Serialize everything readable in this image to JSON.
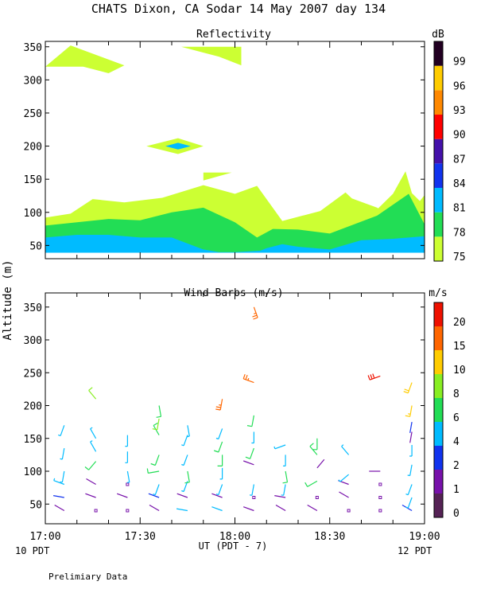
{
  "figure": {
    "title": "CHATS Dixon, CA  Sodar  14 May 2007  day 134",
    "ylabel": "Altitude (m)",
    "xlabel": "UT  (PDT - 7)",
    "left_note": "10 PDT",
    "right_note": "12 PDT",
    "footer": "Prelimiary Data",
    "xticks": [
      "17:00",
      "17:30",
      "18:00",
      "18:30",
      "19:00"
    ]
  },
  "chart_data": [
    {
      "type": "area",
      "title": "Reflectivity",
      "colorbar_label": "dB",
      "colorbar_ticks": [
        "75",
        "78",
        "81",
        "84",
        "87",
        "90",
        "93",
        "96",
        "99"
      ],
      "colorbar_colors": [
        "#ccff33",
        "#22dd55",
        "#00bbff",
        "#1133ee",
        "#4411aa",
        "#ff0000",
        "#ff8800",
        "#ffcc00",
        "#220022"
      ],
      "x_range": [
        "17:00",
        "19:00"
      ],
      "yticks": [
        50,
        100,
        150,
        200,
        250,
        300,
        350
      ],
      "ylim": [
        30,
        355
      ],
      "band_75": {
        "x_min": [
          0,
          8,
          15,
          25,
          37,
          50,
          60,
          67,
          75,
          87,
          95,
          97,
          105,
          111,
          115,
          120
        ],
        "top": [
          92,
          98,
          120,
          115,
          122,
          141,
          128,
          140,
          87,
          102,
          130,
          121,
          107,
          87,
          96,
          126
        ]
      },
      "band_75_right": {
        "x_min": [
          103,
          110,
          114,
          116,
          120
        ],
        "top": [
          95,
          128,
          162,
          129,
          110
        ]
      },
      "band_78": {
        "x_min": [
          0,
          10,
          20,
          30,
          40,
          50,
          60,
          67,
          72,
          80,
          90,
          105,
          115,
          120
        ],
        "top": [
          80,
          85,
          90,
          88,
          100,
          107,
          85,
          62,
          75,
          74,
          68,
          95,
          128,
          82
        ]
      },
      "band_81": {
        "x_min": [
          0,
          10,
          20,
          30,
          40,
          50,
          55,
          60,
          68,
          70,
          75,
          80,
          90,
          100,
          110,
          120
        ],
        "top": [
          62,
          66,
          66,
          62,
          62,
          44,
          40,
          40,
          42,
          46,
          52,
          48,
          44,
          58,
          60,
          64
        ]
      },
      "upper_patches_75": [
        {
          "x_min": [
            0,
            8,
            25,
            20,
            12,
            0
          ],
          "alt": [
            320,
            352,
            322,
            310,
            320,
            320
          ]
        },
        {
          "x_min": [
            43,
            62,
            62,
            55,
            43
          ],
          "alt": [
            350,
            350,
            322,
            335,
            350
          ]
        },
        {
          "x_min": [
            32,
            42,
            50,
            42,
            32
          ],
          "alt": [
            200,
            212,
            200,
            188,
            200
          ]
        },
        {
          "x_min": [
            50,
            59,
            50
          ],
          "alt": [
            160,
            160,
            148
          ]
        }
      ],
      "patch_81": {
        "x_min": [
          38,
          42,
          46,
          42
        ],
        "alt": [
          200,
          205,
          200,
          195
        ]
      }
    },
    {
      "type": "scatter",
      "title": "Wind Barbs (m/s)",
      "colorbar_label": "m/s",
      "colorbar_ticks": [
        "0",
        "1",
        "2",
        "4",
        "6",
        "8",
        "10",
        "15",
        "20"
      ],
      "colorbar_colors": [
        "#552255",
        "#7711aa",
        "#1133ee",
        "#00bbff",
        "#22dd55",
        "#88ee22",
        "#ffcc00",
        "#ff6600",
        "#ee1100"
      ],
      "x_range": [
        "17:00",
        "19:00"
      ],
      "yticks": [
        50,
        100,
        150,
        200,
        250,
        300,
        350
      ],
      "ylim": [
        20,
        360
      ],
      "barbs": [
        {
          "t": 6,
          "alt": 40,
          "dir": 300,
          "speed": 1,
          "color": "#7711aa"
        },
        {
          "t": 6,
          "alt": 60,
          "dir": 280,
          "speed": 2,
          "color": "#1133ee"
        },
        {
          "t": 6,
          "alt": 80,
          "dir": 290,
          "speed": 3,
          "color": "#00bbff"
        },
        {
          "t": 6,
          "alt": 100,
          "dir": 190,
          "speed": 3,
          "color": "#00bbff"
        },
        {
          "t": 6,
          "alt": 135,
          "dir": 190,
          "speed": 4,
          "color": "#00bbff"
        },
        {
          "t": 6,
          "alt": 170,
          "dir": 200,
          "speed": 4,
          "color": "#00bbff"
        },
        {
          "t": 16,
          "alt": 40,
          "dir": 0,
          "speed": 0,
          "color": "#7711aa",
          "calm": true
        },
        {
          "t": 16,
          "alt": 60,
          "dir": 290,
          "speed": 1,
          "color": "#7711aa"
        },
        {
          "t": 16,
          "alt": 80,
          "dir": 300,
          "speed": 1,
          "color": "#7711aa"
        },
        {
          "t": 16,
          "alt": 115,
          "dir": 220,
          "speed": 6,
          "color": "#22dd55"
        },
        {
          "t": 16,
          "alt": 130,
          "dir": 330,
          "speed": 4,
          "color": "#00bbff"
        },
        {
          "t": 16,
          "alt": 150,
          "dir": 330,
          "speed": 3,
          "color": "#00bbff"
        },
        {
          "t": 16,
          "alt": 210,
          "dir": 320,
          "speed": 7,
          "color": "#88ee22"
        },
        {
          "t": 26,
          "alt": 40,
          "dir": 0,
          "speed": 0,
          "color": "#7711aa",
          "calm": true
        },
        {
          "t": 26,
          "alt": 60,
          "dir": 290,
          "speed": 1,
          "color": "#7711aa"
        },
        {
          "t": 26,
          "alt": 80,
          "dir": 0,
          "speed": 0,
          "color": "#7711aa",
          "calm": true
        },
        {
          "t": 26,
          "alt": 100,
          "dir": 170,
          "speed": 3,
          "color": "#00bbff"
        },
        {
          "t": 26,
          "alt": 130,
          "dir": 180,
          "speed": 3,
          "color": "#00bbff"
        },
        {
          "t": 26,
          "alt": 155,
          "dir": 180,
          "speed": 3,
          "color": "#00bbff"
        },
        {
          "t": 36,
          "alt": 40,
          "dir": 300,
          "speed": 1,
          "color": "#7711aa"
        },
        {
          "t": 36,
          "alt": 60,
          "dir": 290,
          "speed": 2,
          "color": "#1133ee"
        },
        {
          "t": 36,
          "alt": 80,
          "dir": 200,
          "speed": 4,
          "color": "#00bbff"
        },
        {
          "t": 36,
          "alt": 100,
          "dir": 260,
          "speed": 5,
          "color": "#22dd55"
        },
        {
          "t": 36,
          "alt": 125,
          "dir": 200,
          "speed": 5,
          "color": "#22dd55"
        },
        {
          "t": 36,
          "alt": 155,
          "dir": 330,
          "speed": 5,
          "color": "#22dd55"
        },
        {
          "t": 36,
          "alt": 180,
          "dir": 190,
          "speed": 7,
          "color": "#88ee22"
        },
        {
          "t": 36,
          "alt": 200,
          "dir": 170,
          "speed": 5,
          "color": "#22dd55"
        },
        {
          "t": 45,
          "alt": 40,
          "dir": 280,
          "speed": 2,
          "color": "#00bbff"
        },
        {
          "t": 45,
          "alt": 60,
          "dir": 290,
          "speed": 1,
          "color": "#7711aa"
        },
        {
          "t": 45,
          "alt": 85,
          "dir": 200,
          "speed": 3,
          "color": "#00bbff"
        },
        {
          "t": 45,
          "alt": 100,
          "dir": 170,
          "speed": 5,
          "color": "#22dd55"
        },
        {
          "t": 45,
          "alt": 125,
          "dir": 200,
          "speed": 3,
          "color": "#00bbff"
        },
        {
          "t": 45,
          "alt": 155,
          "dir": 200,
          "speed": 3,
          "color": "#00bbff"
        },
        {
          "t": 45,
          "alt": 170,
          "dir": 170,
          "speed": 3,
          "color": "#00bbff"
        },
        {
          "t": 56,
          "alt": 40,
          "dir": 290,
          "speed": 2,
          "color": "#00bbff"
        },
        {
          "t": 56,
          "alt": 60,
          "dir": 290,
          "speed": 1,
          "color": "#7711aa"
        },
        {
          "t": 56,
          "alt": 80,
          "dir": 200,
          "speed": 3,
          "color": "#00bbff"
        },
        {
          "t": 56,
          "alt": 105,
          "dir": 180,
          "speed": 3,
          "color": "#00bbff"
        },
        {
          "t": 56,
          "alt": 125,
          "dir": 180,
          "speed": 5,
          "color": "#22dd55"
        },
        {
          "t": 56,
          "alt": 145,
          "dir": 200,
          "speed": 5,
          "color": "#22dd55"
        },
        {
          "t": 56,
          "alt": 165,
          "dir": 200,
          "speed": 4,
          "color": "#00bbff"
        },
        {
          "t": 56,
          "alt": 210,
          "dir": 190,
          "speed": 14,
          "color": "#ff6600"
        },
        {
          "t": 66,
          "alt": 40,
          "dir": 290,
          "speed": 1,
          "color": "#7711aa"
        },
        {
          "t": 66,
          "alt": 60,
          "dir": 0,
          "speed": 0,
          "color": "#7711aa",
          "calm": true
        },
        {
          "t": 66,
          "alt": 80,
          "dir": 190,
          "speed": 3,
          "color": "#00bbff"
        },
        {
          "t": 66,
          "alt": 110,
          "dir": 290,
          "speed": 1,
          "color": "#7711aa"
        },
        {
          "t": 66,
          "alt": 135,
          "dir": 200,
          "speed": 5,
          "color": "#22dd55"
        },
        {
          "t": 66,
          "alt": 160,
          "dir": 180,
          "speed": 4,
          "color": "#00bbff"
        },
        {
          "t": 66,
          "alt": 185,
          "dir": 190,
          "speed": 6,
          "color": "#22dd55"
        },
        {
          "t": 66,
          "alt": 235,
          "dir": 290,
          "speed": 14,
          "color": "#ff6600"
        },
        {
          "t": 66,
          "alt": 350,
          "dir": 160,
          "speed": 14,
          "color": "#ff6600"
        },
        {
          "t": 76,
          "alt": 40,
          "dir": 300,
          "speed": 1,
          "color": "#7711aa"
        },
        {
          "t": 76,
          "alt": 60,
          "dir": 280,
          "speed": 1,
          "color": "#7711aa"
        },
        {
          "t": 76,
          "alt": 80,
          "dir": 190,
          "speed": 3,
          "color": "#00bbff"
        },
        {
          "t": 76,
          "alt": 100,
          "dir": 170,
          "speed": 5,
          "color": "#22dd55"
        },
        {
          "t": 76,
          "alt": 125,
          "dir": 180,
          "speed": 4,
          "color": "#00bbff"
        },
        {
          "t": 76,
          "alt": 140,
          "dir": 250,
          "speed": 3,
          "color": "#00bbff"
        },
        {
          "t": 86,
          "alt": 40,
          "dir": 300,
          "speed": 1,
          "color": "#7711aa"
        },
        {
          "t": 86,
          "alt": 60,
          "dir": 0,
          "speed": 0,
          "color": "#7711aa",
          "calm": true
        },
        {
          "t": 86,
          "alt": 85,
          "dir": 240,
          "speed": 5,
          "color": "#22dd55"
        },
        {
          "t": 86,
          "alt": 105,
          "dir": 40,
          "speed": 1,
          "color": "#7711aa"
        },
        {
          "t": 86,
          "alt": 125,
          "dir": 320,
          "speed": 5,
          "color": "#22dd55"
        },
        {
          "t": 86,
          "alt": 150,
          "dir": 180,
          "speed": 5,
          "color": "#22dd55"
        },
        {
          "t": 96,
          "alt": 40,
          "dir": 0,
          "speed": 0,
          "color": "#7711aa",
          "calm": true
        },
        {
          "t": 96,
          "alt": 60,
          "dir": 300,
          "speed": 1,
          "color": "#7711aa"
        },
        {
          "t": 96,
          "alt": 80,
          "dir": 290,
          "speed": 1,
          "color": "#7711aa"
        },
        {
          "t": 96,
          "alt": 95,
          "dir": 230,
          "speed": 3,
          "color": "#00bbff"
        },
        {
          "t": 96,
          "alt": 125,
          "dir": 320,
          "speed": 3,
          "color": "#00bbff"
        },
        {
          "t": 106,
          "alt": 40,
          "dir": 0,
          "speed": 0,
          "color": "#7711aa",
          "calm": true
        },
        {
          "t": 106,
          "alt": 60,
          "dir": 0,
          "speed": 0,
          "color": "#7711aa",
          "calm": true
        },
        {
          "t": 106,
          "alt": 80,
          "dir": 0,
          "speed": 0,
          "color": "#7711aa",
          "calm": true
        },
        {
          "t": 106,
          "alt": 100,
          "dir": 270,
          "speed": 1,
          "color": "#7711aa"
        },
        {
          "t": 106,
          "alt": 245,
          "dir": 250,
          "speed": 17,
          "color": "#ee1100"
        },
        {
          "t": 116,
          "alt": 40,
          "dir": 300,
          "speed": 2,
          "color": "#1133ee"
        },
        {
          "t": 116,
          "alt": 60,
          "dir": 200,
          "speed": 3,
          "color": "#00bbff"
        },
        {
          "t": 116,
          "alt": 80,
          "dir": 200,
          "speed": 3,
          "color": "#00bbff"
        },
        {
          "t": 116,
          "alt": 110,
          "dir": 190,
          "speed": 3,
          "color": "#00bbff"
        },
        {
          "t": 116,
          "alt": 140,
          "dir": 180,
          "speed": 4,
          "color": "#00bbff"
        },
        {
          "t": 116,
          "alt": 160,
          "dir": 190,
          "speed": 1,
          "color": "#7711aa"
        },
        {
          "t": 116,
          "alt": 175,
          "dir": 190,
          "speed": 2,
          "color": "#1133ee"
        },
        {
          "t": 116,
          "alt": 200,
          "dir": 190,
          "speed": 8,
          "color": "#ffcc00"
        },
        {
          "t": 116,
          "alt": 235,
          "dir": 200,
          "speed": 10,
          "color": "#ffcc00"
        }
      ]
    }
  ]
}
